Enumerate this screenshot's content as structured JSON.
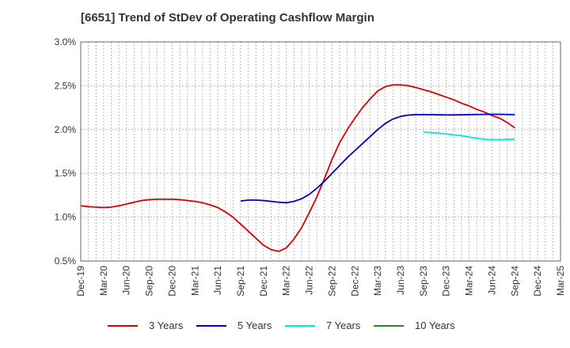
{
  "title": "[6651]  Trend of StDev of Operating Cashflow Margin",
  "chart_data": {
    "type": "line",
    "title": "[6651]  Trend of StDev of Operating Cashflow Margin",
    "y_ticks": [
      "0.5%",
      "1.0%",
      "1.5%",
      "2.0%",
      "2.5%",
      "3.0%"
    ],
    "ylim": [
      0.5,
      3.0
    ],
    "x_ticks": [
      "Dec-19",
      "Mar-20",
      "Jun-20",
      "Sep-20",
      "Dec-20",
      "Mar-21",
      "Jun-21",
      "Sep-21",
      "Dec-21",
      "Mar-22",
      "Jun-22",
      "Sep-22",
      "Dec-22",
      "Mar-23",
      "Jun-23",
      "Sep-23",
      "Dec-23",
      "Mar-24",
      "Jun-24",
      "Sep-24",
      "Dec-24",
      "Mar-25"
    ],
    "grid": true,
    "legend_position": "bottom",
    "series": [
      {
        "name": "3 Years",
        "color": "#dd0000",
        "points": [
          [
            "Dec-19",
            1.13
          ],
          [
            "Jan-20",
            1.12
          ],
          [
            "Feb-20",
            1.115
          ],
          [
            "Mar-20",
            1.11
          ],
          [
            "Apr-20",
            1.115
          ],
          [
            "May-20",
            1.13
          ],
          [
            "Jun-20",
            1.15
          ],
          [
            "Jul-20",
            1.17
          ],
          [
            "Aug-20",
            1.19
          ],
          [
            "Sep-20",
            1.2
          ],
          [
            "Oct-20",
            1.205
          ],
          [
            "Nov-20",
            1.205
          ],
          [
            "Dec-20",
            1.205
          ],
          [
            "Jan-21",
            1.2
          ],
          [
            "Feb-21",
            1.19
          ],
          [
            "Mar-21",
            1.18
          ],
          [
            "Apr-21",
            1.165
          ],
          [
            "May-21",
            1.14
          ],
          [
            "Jun-21",
            1.11
          ],
          [
            "Jul-21",
            1.06
          ],
          [
            "Aug-21",
            1.0
          ],
          [
            "Sep-21",
            0.92
          ],
          [
            "Oct-21",
            0.84
          ],
          [
            "Nov-21",
            0.76
          ],
          [
            "Dec-21",
            0.68
          ],
          [
            "Jan-22",
            0.63
          ],
          [
            "Feb-22",
            0.61
          ],
          [
            "Mar-22",
            0.65
          ],
          [
            "Apr-22",
            0.75
          ],
          [
            "May-22",
            0.88
          ],
          [
            "Jun-22",
            1.05
          ],
          [
            "Jul-22",
            1.23
          ],
          [
            "Aug-22",
            1.44
          ],
          [
            "Sep-22",
            1.66
          ],
          [
            "Oct-22",
            1.85
          ],
          [
            "Nov-22",
            2.0
          ],
          [
            "Dec-22",
            2.13
          ],
          [
            "Jan-23",
            2.25
          ],
          [
            "Feb-23",
            2.35
          ],
          [
            "Mar-23",
            2.44
          ],
          [
            "Apr-23",
            2.49
          ],
          [
            "May-23",
            2.51
          ],
          [
            "Jun-23",
            2.51
          ],
          [
            "Jul-23",
            2.5
          ],
          [
            "Aug-23",
            2.48
          ],
          [
            "Sep-23",
            2.455
          ],
          [
            "Oct-23",
            2.43
          ],
          [
            "Nov-23",
            2.4
          ],
          [
            "Dec-23",
            2.37
          ],
          [
            "Jan-24",
            2.34
          ],
          [
            "Feb-24",
            2.3
          ],
          [
            "Mar-24",
            2.27
          ],
          [
            "Apr-24",
            2.23
          ],
          [
            "May-24",
            2.2
          ],
          [
            "Jun-24",
            2.16
          ],
          [
            "Jul-24",
            2.13
          ],
          [
            "Aug-24",
            2.08
          ],
          [
            "Sep-24",
            2.02
          ]
        ]
      },
      {
        "name": "5 Years",
        "color": "#0000cc",
        "points": [
          [
            "Sep-21",
            1.185
          ],
          [
            "Oct-21",
            1.195
          ],
          [
            "Nov-21",
            1.195
          ],
          [
            "Dec-21",
            1.19
          ],
          [
            "Jan-22",
            1.18
          ],
          [
            "Feb-22",
            1.17
          ],
          [
            "Mar-22",
            1.165
          ],
          [
            "Apr-22",
            1.18
          ],
          [
            "May-22",
            1.21
          ],
          [
            "Jun-22",
            1.26
          ],
          [
            "Jul-22",
            1.33
          ],
          [
            "Aug-22",
            1.41
          ],
          [
            "Sep-22",
            1.5
          ],
          [
            "Oct-22",
            1.59
          ],
          [
            "Nov-22",
            1.68
          ],
          [
            "Dec-22",
            1.76
          ],
          [
            "Jan-23",
            1.84
          ],
          [
            "Feb-23",
            1.92
          ],
          [
            "Mar-23",
            2.0
          ],
          [
            "Apr-23",
            2.07
          ],
          [
            "May-23",
            2.12
          ],
          [
            "Jun-23",
            2.15
          ],
          [
            "Jul-23",
            2.165
          ],
          [
            "Aug-23",
            2.17
          ],
          [
            "Sep-23",
            2.17
          ],
          [
            "Oct-23",
            2.17
          ],
          [
            "Nov-23",
            2.168
          ],
          [
            "Dec-23",
            2.167
          ],
          [
            "Jan-24",
            2.167
          ],
          [
            "Feb-24",
            2.168
          ],
          [
            "Mar-24",
            2.17
          ],
          [
            "Apr-24",
            2.172
          ],
          [
            "May-24",
            2.173
          ],
          [
            "Jun-24",
            2.174
          ],
          [
            "Jul-24",
            2.174
          ],
          [
            "Aug-24",
            2.172
          ],
          [
            "Sep-24",
            2.17
          ]
        ]
      },
      {
        "name": "7 Years",
        "color": "#00e5ee",
        "points": [
          [
            "Sep-23",
            1.97
          ],
          [
            "Oct-23",
            1.965
          ],
          [
            "Nov-23",
            1.96
          ],
          [
            "Dec-23",
            1.95
          ],
          [
            "Jan-24",
            1.94
          ],
          [
            "Feb-24",
            1.93
          ],
          [
            "Mar-24",
            1.915
          ],
          [
            "Apr-24",
            1.9
          ],
          [
            "May-24",
            1.89
          ],
          [
            "Jun-24",
            1.885
          ],
          [
            "Jul-24",
            1.885
          ],
          [
            "Aug-24",
            1.887
          ],
          [
            "Sep-24",
            1.89
          ]
        ]
      },
      {
        "name": "10 Years",
        "color": "#228b22",
        "points": []
      }
    ]
  }
}
